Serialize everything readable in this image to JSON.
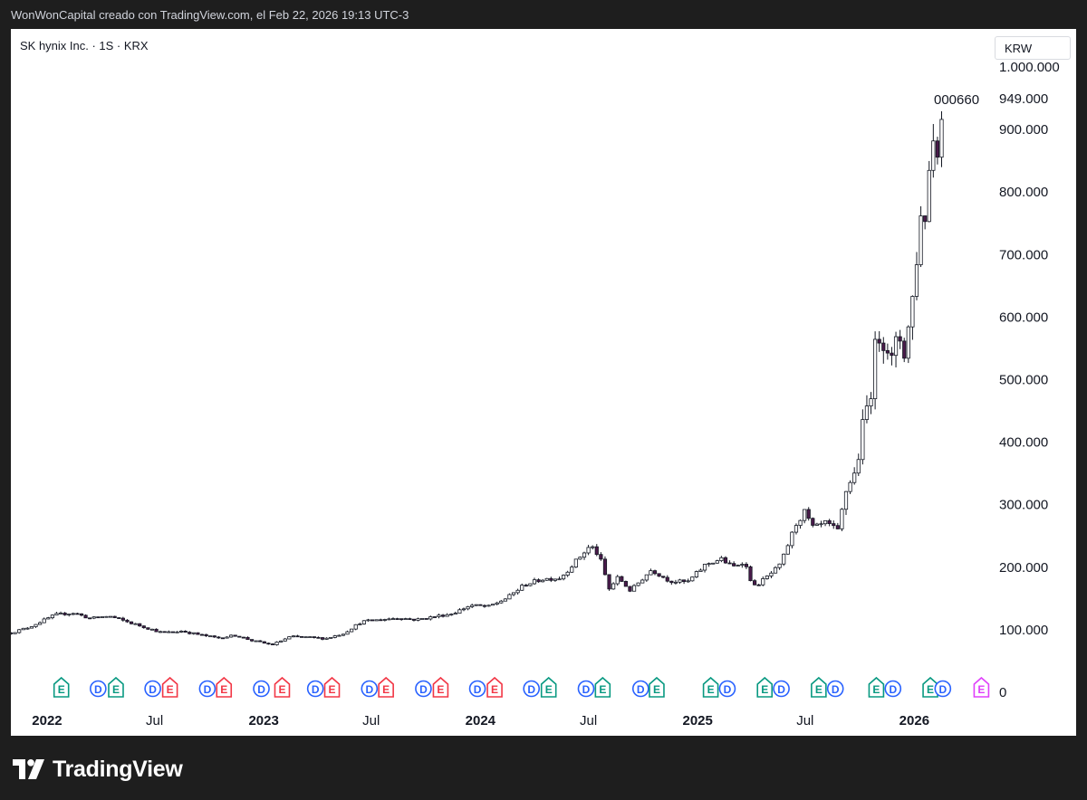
{
  "header": {
    "attribution": "WonWonCapital creado con TradingView.com, el Feb 22, 2026 19:13 UTC-3"
  },
  "legend": {
    "symbol": "SK hynix Inc. · 1S · KRX",
    "currency": "KRW"
  },
  "footer": {
    "brand": "TradingView"
  },
  "chart_data": {
    "type": "candlestick",
    "title": "SK hynix Inc. · 1S · KRX",
    "interval": "1S",
    "currency": "KRW",
    "ticker_label": "000660",
    "last_price_label": "949.000",
    "ylim": [
      0,
      1000000
    ],
    "y_ticks": [
      {
        "value": 1000000,
        "label": "1.000.000"
      },
      {
        "value": 900000,
        "label": "900.000"
      },
      {
        "value": 800000,
        "label": "800.000"
      },
      {
        "value": 700000,
        "label": "700.000"
      },
      {
        "value": 600000,
        "label": "600.000"
      },
      {
        "value": 500000,
        "label": "500.000"
      },
      {
        "value": 400000,
        "label": "400.000"
      },
      {
        "value": 300000,
        "label": "300.000"
      },
      {
        "value": 200000,
        "label": "200.000"
      },
      {
        "value": 100000,
        "label": "100.000"
      },
      {
        "value": 0,
        "label": "0"
      }
    ],
    "x_range": [
      "2021-11-01",
      "2026-05-01"
    ],
    "x_ticks": [
      {
        "date": "2022-01-01",
        "label": "2022",
        "major": true
      },
      {
        "date": "2022-07-01",
        "label": "Jul",
        "major": false
      },
      {
        "date": "2023-01-01",
        "label": "2023",
        "major": true
      },
      {
        "date": "2023-07-01",
        "label": "Jul",
        "major": false
      },
      {
        "date": "2024-01-01",
        "label": "2024",
        "major": true
      },
      {
        "date": "2024-07-01",
        "label": "Jul",
        "major": false
      },
      {
        "date": "2025-01-01",
        "label": "2025",
        "major": true
      },
      {
        "date": "2025-07-01",
        "label": "Jul",
        "major": false
      },
      {
        "date": "2026-01-01",
        "label": "2026",
        "major": true
      }
    ],
    "price_path": [
      [
        "2021-11-01",
        95000
      ],
      [
        "2021-12-01",
        104000
      ],
      [
        "2022-01-15",
        124000
      ],
      [
        "2022-02-15",
        127000
      ],
      [
        "2022-03-15",
        118000
      ],
      [
        "2022-04-15",
        122000
      ],
      [
        "2022-05-15",
        113000
      ],
      [
        "2022-06-15",
        104000
      ],
      [
        "2022-07-15",
        95000
      ],
      [
        "2022-08-15",
        98000
      ],
      [
        "2022-09-15",
        92000
      ],
      [
        "2022-10-15",
        87000
      ],
      [
        "2022-11-15",
        91000
      ],
      [
        "2022-12-15",
        82000
      ],
      [
        "2023-01-15",
        76000
      ],
      [
        "2023-02-15",
        89000
      ],
      [
        "2023-03-15",
        88000
      ],
      [
        "2023-04-15",
        86000
      ],
      [
        "2023-05-15",
        94000
      ],
      [
        "2023-06-15",
        113000
      ],
      [
        "2023-07-15",
        116000
      ],
      [
        "2023-08-15",
        119000
      ],
      [
        "2023-09-15",
        116000
      ],
      [
        "2023-10-15",
        121000
      ],
      [
        "2023-11-15",
        126000
      ],
      [
        "2023-12-15",
        139000
      ],
      [
        "2024-01-15",
        137000
      ],
      [
        "2024-02-15",
        151000
      ],
      [
        "2024-03-15",
        172000
      ],
      [
        "2024-04-15",
        181000
      ],
      [
        "2024-05-15",
        183000
      ],
      [
        "2024-06-15",
        215000
      ],
      [
        "2024-07-05",
        235000
      ],
      [
        "2024-07-20",
        216000
      ],
      [
        "2024-08-05",
        165000
      ],
      [
        "2024-08-20",
        184000
      ],
      [
        "2024-09-10",
        162000
      ],
      [
        "2024-09-25",
        177000
      ],
      [
        "2024-10-15",
        196000
      ],
      [
        "2024-11-15",
        178000
      ],
      [
        "2024-12-15",
        176000
      ],
      [
        "2025-01-15",
        205000
      ],
      [
        "2025-02-10",
        213000
      ],
      [
        "2025-03-01",
        200000
      ],
      [
        "2025-03-20",
        210000
      ],
      [
        "2025-04-05",
        168000
      ],
      [
        "2025-04-25",
        182000
      ],
      [
        "2025-05-20",
        203000
      ],
      [
        "2025-06-15",
        268000
      ],
      [
        "2025-06-30",
        288000
      ],
      [
        "2025-07-15",
        262000
      ],
      [
        "2025-08-05",
        271000
      ],
      [
        "2025-08-25",
        258000
      ],
      [
        "2025-09-10",
        332000
      ],
      [
        "2025-09-25",
        352000
      ],
      [
        "2025-10-05",
        420000
      ],
      [
        "2025-10-20",
        485000
      ],
      [
        "2025-10-30",
        575000
      ],
      [
        "2025-11-15",
        560000
      ],
      [
        "2025-11-25",
        525000
      ],
      [
        "2025-12-05",
        575000
      ],
      [
        "2025-12-15",
        545000
      ],
      [
        "2025-12-25",
        600000
      ],
      [
        "2026-01-01",
        652000
      ],
      [
        "2026-01-10",
        755000
      ],
      [
        "2026-01-22",
        770000
      ],
      [
        "2026-01-30",
        900000
      ],
      [
        "2026-02-06",
        873000
      ],
      [
        "2026-02-13",
        890000
      ],
      [
        "2026-02-20",
        949000
      ]
    ],
    "events": [
      {
        "date": "2022-01-25",
        "type": "E",
        "color": "#089981"
      },
      {
        "date": "2022-03-28",
        "type": "D",
        "color": "#2962ff"
      },
      {
        "date": "2022-04-27",
        "type": "E",
        "color": "#089981"
      },
      {
        "date": "2022-06-28",
        "type": "D",
        "color": "#2962ff"
      },
      {
        "date": "2022-07-27",
        "type": "E",
        "color": "#f23645"
      },
      {
        "date": "2022-09-28",
        "type": "D",
        "color": "#2962ff"
      },
      {
        "date": "2022-10-26",
        "type": "E",
        "color": "#f23645"
      },
      {
        "date": "2022-12-28",
        "type": "D",
        "color": "#2962ff"
      },
      {
        "date": "2023-02-01",
        "type": "E",
        "color": "#f23645"
      },
      {
        "date": "2023-03-29",
        "type": "D",
        "color": "#2962ff"
      },
      {
        "date": "2023-04-26",
        "type": "E",
        "color": "#f23645"
      },
      {
        "date": "2023-06-28",
        "type": "D",
        "color": "#2962ff"
      },
      {
        "date": "2023-07-26",
        "type": "E",
        "color": "#f23645"
      },
      {
        "date": "2023-09-27",
        "type": "D",
        "color": "#2962ff"
      },
      {
        "date": "2023-10-26",
        "type": "E",
        "color": "#f23645"
      },
      {
        "date": "2023-12-27",
        "type": "D",
        "color": "#2962ff"
      },
      {
        "date": "2024-01-25",
        "type": "E",
        "color": "#f23645"
      },
      {
        "date": "2024-03-27",
        "type": "D",
        "color": "#2962ff"
      },
      {
        "date": "2024-04-25",
        "type": "E",
        "color": "#089981"
      },
      {
        "date": "2024-06-27",
        "type": "D",
        "color": "#2962ff"
      },
      {
        "date": "2024-07-25",
        "type": "E",
        "color": "#089981"
      },
      {
        "date": "2024-09-27",
        "type": "D",
        "color": "#2962ff"
      },
      {
        "date": "2024-10-24",
        "type": "E",
        "color": "#089981"
      },
      {
        "date": "2025-01-23",
        "type": "E",
        "color": "#089981"
      },
      {
        "date": "2025-02-20",
        "type": "D",
        "color": "#2962ff"
      },
      {
        "date": "2025-04-24",
        "type": "E",
        "color": "#089981"
      },
      {
        "date": "2025-05-22",
        "type": "D",
        "color": "#2962ff"
      },
      {
        "date": "2025-07-24",
        "type": "E",
        "color": "#089981"
      },
      {
        "date": "2025-08-21",
        "type": "D",
        "color": "#2962ff"
      },
      {
        "date": "2025-10-29",
        "type": "E",
        "color": "#089981"
      },
      {
        "date": "2025-11-26",
        "type": "D",
        "color": "#2962ff"
      },
      {
        "date": "2026-01-28",
        "type": "E",
        "color": "#089981"
      },
      {
        "date": "2026-02-18",
        "type": "D",
        "color": "#2962ff"
      },
      {
        "date": "2026-04-24",
        "type": "E",
        "color": "#e040fb"
      }
    ],
    "colors": {
      "up": "#ffffff",
      "down": "#4a1a4a",
      "wick": "#131722",
      "grid": "none"
    }
  }
}
